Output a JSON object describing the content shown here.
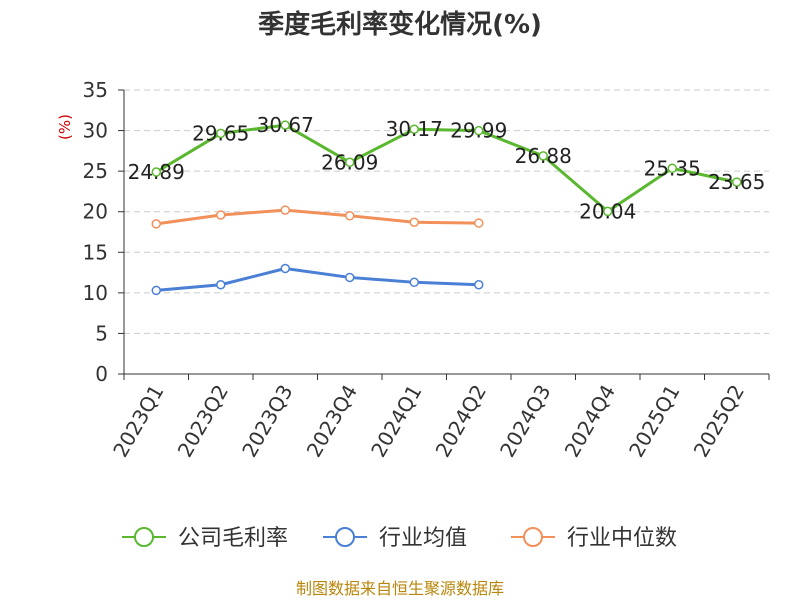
{
  "chart_data": {
    "type": "line",
    "title": "季度毛利率变化情况(%)",
    "ylabel": "(%)",
    "ylim": [
      0,
      35
    ],
    "yticks": [
      0,
      5,
      10,
      15,
      20,
      25,
      30,
      35
    ],
    "categories": [
      "2023Q1",
      "2023Q2",
      "2023Q3",
      "2023Q4",
      "2024Q1",
      "2024Q2",
      "2024Q3",
      "2024Q4",
      "2025Q1",
      "2025Q2"
    ],
    "grid": true,
    "legend_position": "bottom",
    "series": [
      {
        "name": "公司毛利率",
        "color": "#5ab82f",
        "values": [
          24.89,
          29.65,
          30.67,
          26.09,
          30.17,
          29.99,
          26.88,
          20.04,
          25.35,
          23.65
        ],
        "labels": [
          "24.89",
          "29.65",
          "30.67",
          "26.09",
          "30.17",
          "29.99",
          "26.88",
          "20.04",
          "25.35",
          "23.65"
        ]
      },
      {
        "name": "行业均值",
        "color": "#4a7fd6",
        "values": [
          10.3,
          11.0,
          13.0,
          11.9,
          11.3,
          11.0,
          null,
          null,
          null,
          null
        ]
      },
      {
        "name": "行业中位数",
        "color": "#f2905a",
        "values": [
          18.5,
          19.6,
          20.2,
          19.5,
          18.7,
          18.6,
          null,
          null,
          null,
          null
        ]
      }
    ]
  },
  "source": "制图数据来自恒生聚源数据库"
}
